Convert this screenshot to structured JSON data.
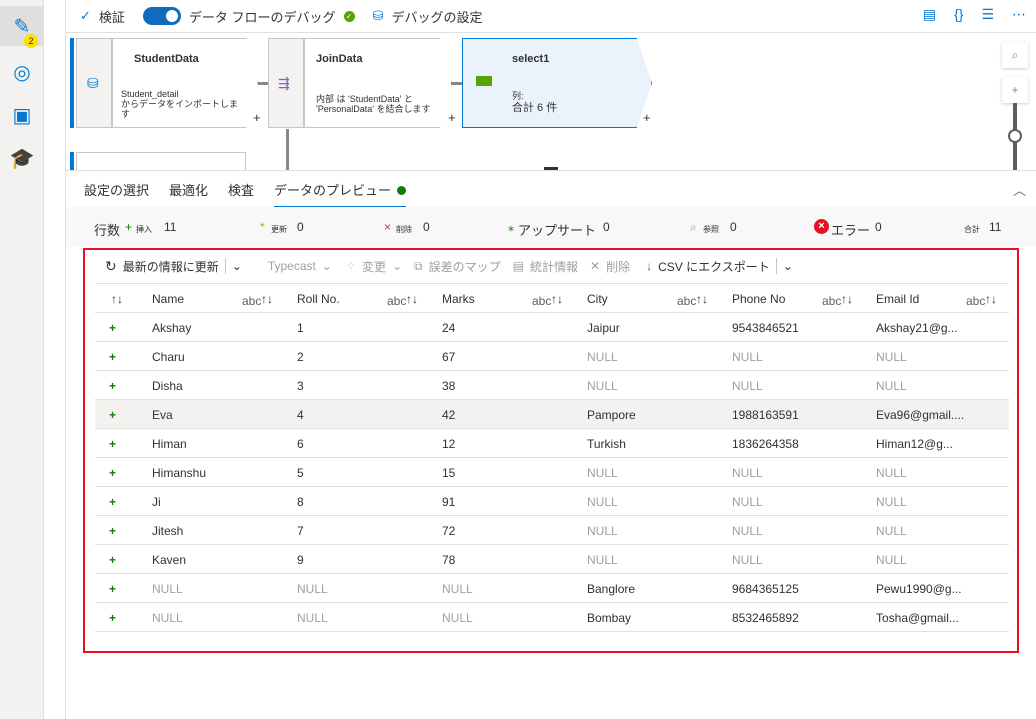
{
  "sidebar": {
    "items": [
      {
        "icon": "pencil-icon",
        "badge": "2"
      },
      {
        "icon": "monitor-icon"
      },
      {
        "icon": "toolbox-icon"
      },
      {
        "icon": "learn-icon"
      }
    ]
  },
  "toolbar": {
    "validate": "検証",
    "debug": "データ フローのデバッグ",
    "debug_on": true,
    "debug_settings": "デバッグの設定"
  },
  "canvas": {
    "nodes": [
      {
        "title": "StudentData",
        "desc1": "Student_detail",
        "desc2": "からデータをインポートしま",
        "desc3": "す"
      },
      {
        "title": "JoinData",
        "desc1": "内部 は 'StudentData' と",
        "desc2": "'PersonalData' を結合します"
      },
      {
        "title": "select1",
        "desc1": "列:",
        "desc2": "合計 6 件"
      }
    ]
  },
  "tabs": [
    "設定の選択",
    "最適化",
    "検査",
    "データのプレビュー"
  ],
  "stats": {
    "rows_label": "行数",
    "insert": "挿入",
    "insert_val": "11",
    "update": "更新",
    "update_val": "0",
    "delete": "削除",
    "delete_val": "0",
    "upsert": "アップサート",
    "upsert_val": "0",
    "lookup": "参照",
    "lookup_val": "0",
    "error": "エラー",
    "error_val": "0",
    "total": "合計",
    "total_val": "11"
  },
  "preview_toolbar": {
    "refresh": "最新の情報に更新",
    "typecast": "Typecast",
    "modify": "変更",
    "error_map": "誤差のマップ",
    "statistics": "統計情報",
    "remove": "削除",
    "export": "CSV にエクスポート"
  },
  "table": {
    "columns": [
      "Name",
      "Roll No.",
      "Marks",
      "City",
      "Phone No",
      "Email Id"
    ],
    "type_label": "abc",
    "rows": [
      [
        "Akshay",
        "1",
        "24",
        "Jaipur",
        "9543846521",
        "Akshay21@g..."
      ],
      [
        "Charu",
        "2",
        "67",
        "NULL",
        "NULL",
        "NULL"
      ],
      [
        "Disha",
        "3",
        "38",
        "NULL",
        "NULL",
        "NULL"
      ],
      [
        "Eva",
        "4",
        "42",
        "Pampore",
        "1988163591",
        "Eva96@gmail...."
      ],
      [
        "Himan",
        "6",
        "12",
        "Turkish",
        "1836264358",
        "Himan12@g..."
      ],
      [
        "Himanshu",
        "5",
        "15",
        "NULL",
        "NULL",
        "NULL"
      ],
      [
        "Ji",
        "8",
        "91",
        "NULL",
        "NULL",
        "NULL"
      ],
      [
        "Jitesh",
        "7",
        "72",
        "NULL",
        "NULL",
        "NULL"
      ],
      [
        "Kaven",
        "9",
        "78",
        "NULL",
        "NULL",
        "NULL"
      ],
      [
        "NULL",
        "NULL",
        "NULL",
        "Banglore",
        "9684365125",
        "Pewu1990@g..."
      ],
      [
        "NULL",
        "NULL",
        "NULL",
        "Bombay",
        "8532465892",
        "Tosha@gmail..."
      ]
    ]
  }
}
